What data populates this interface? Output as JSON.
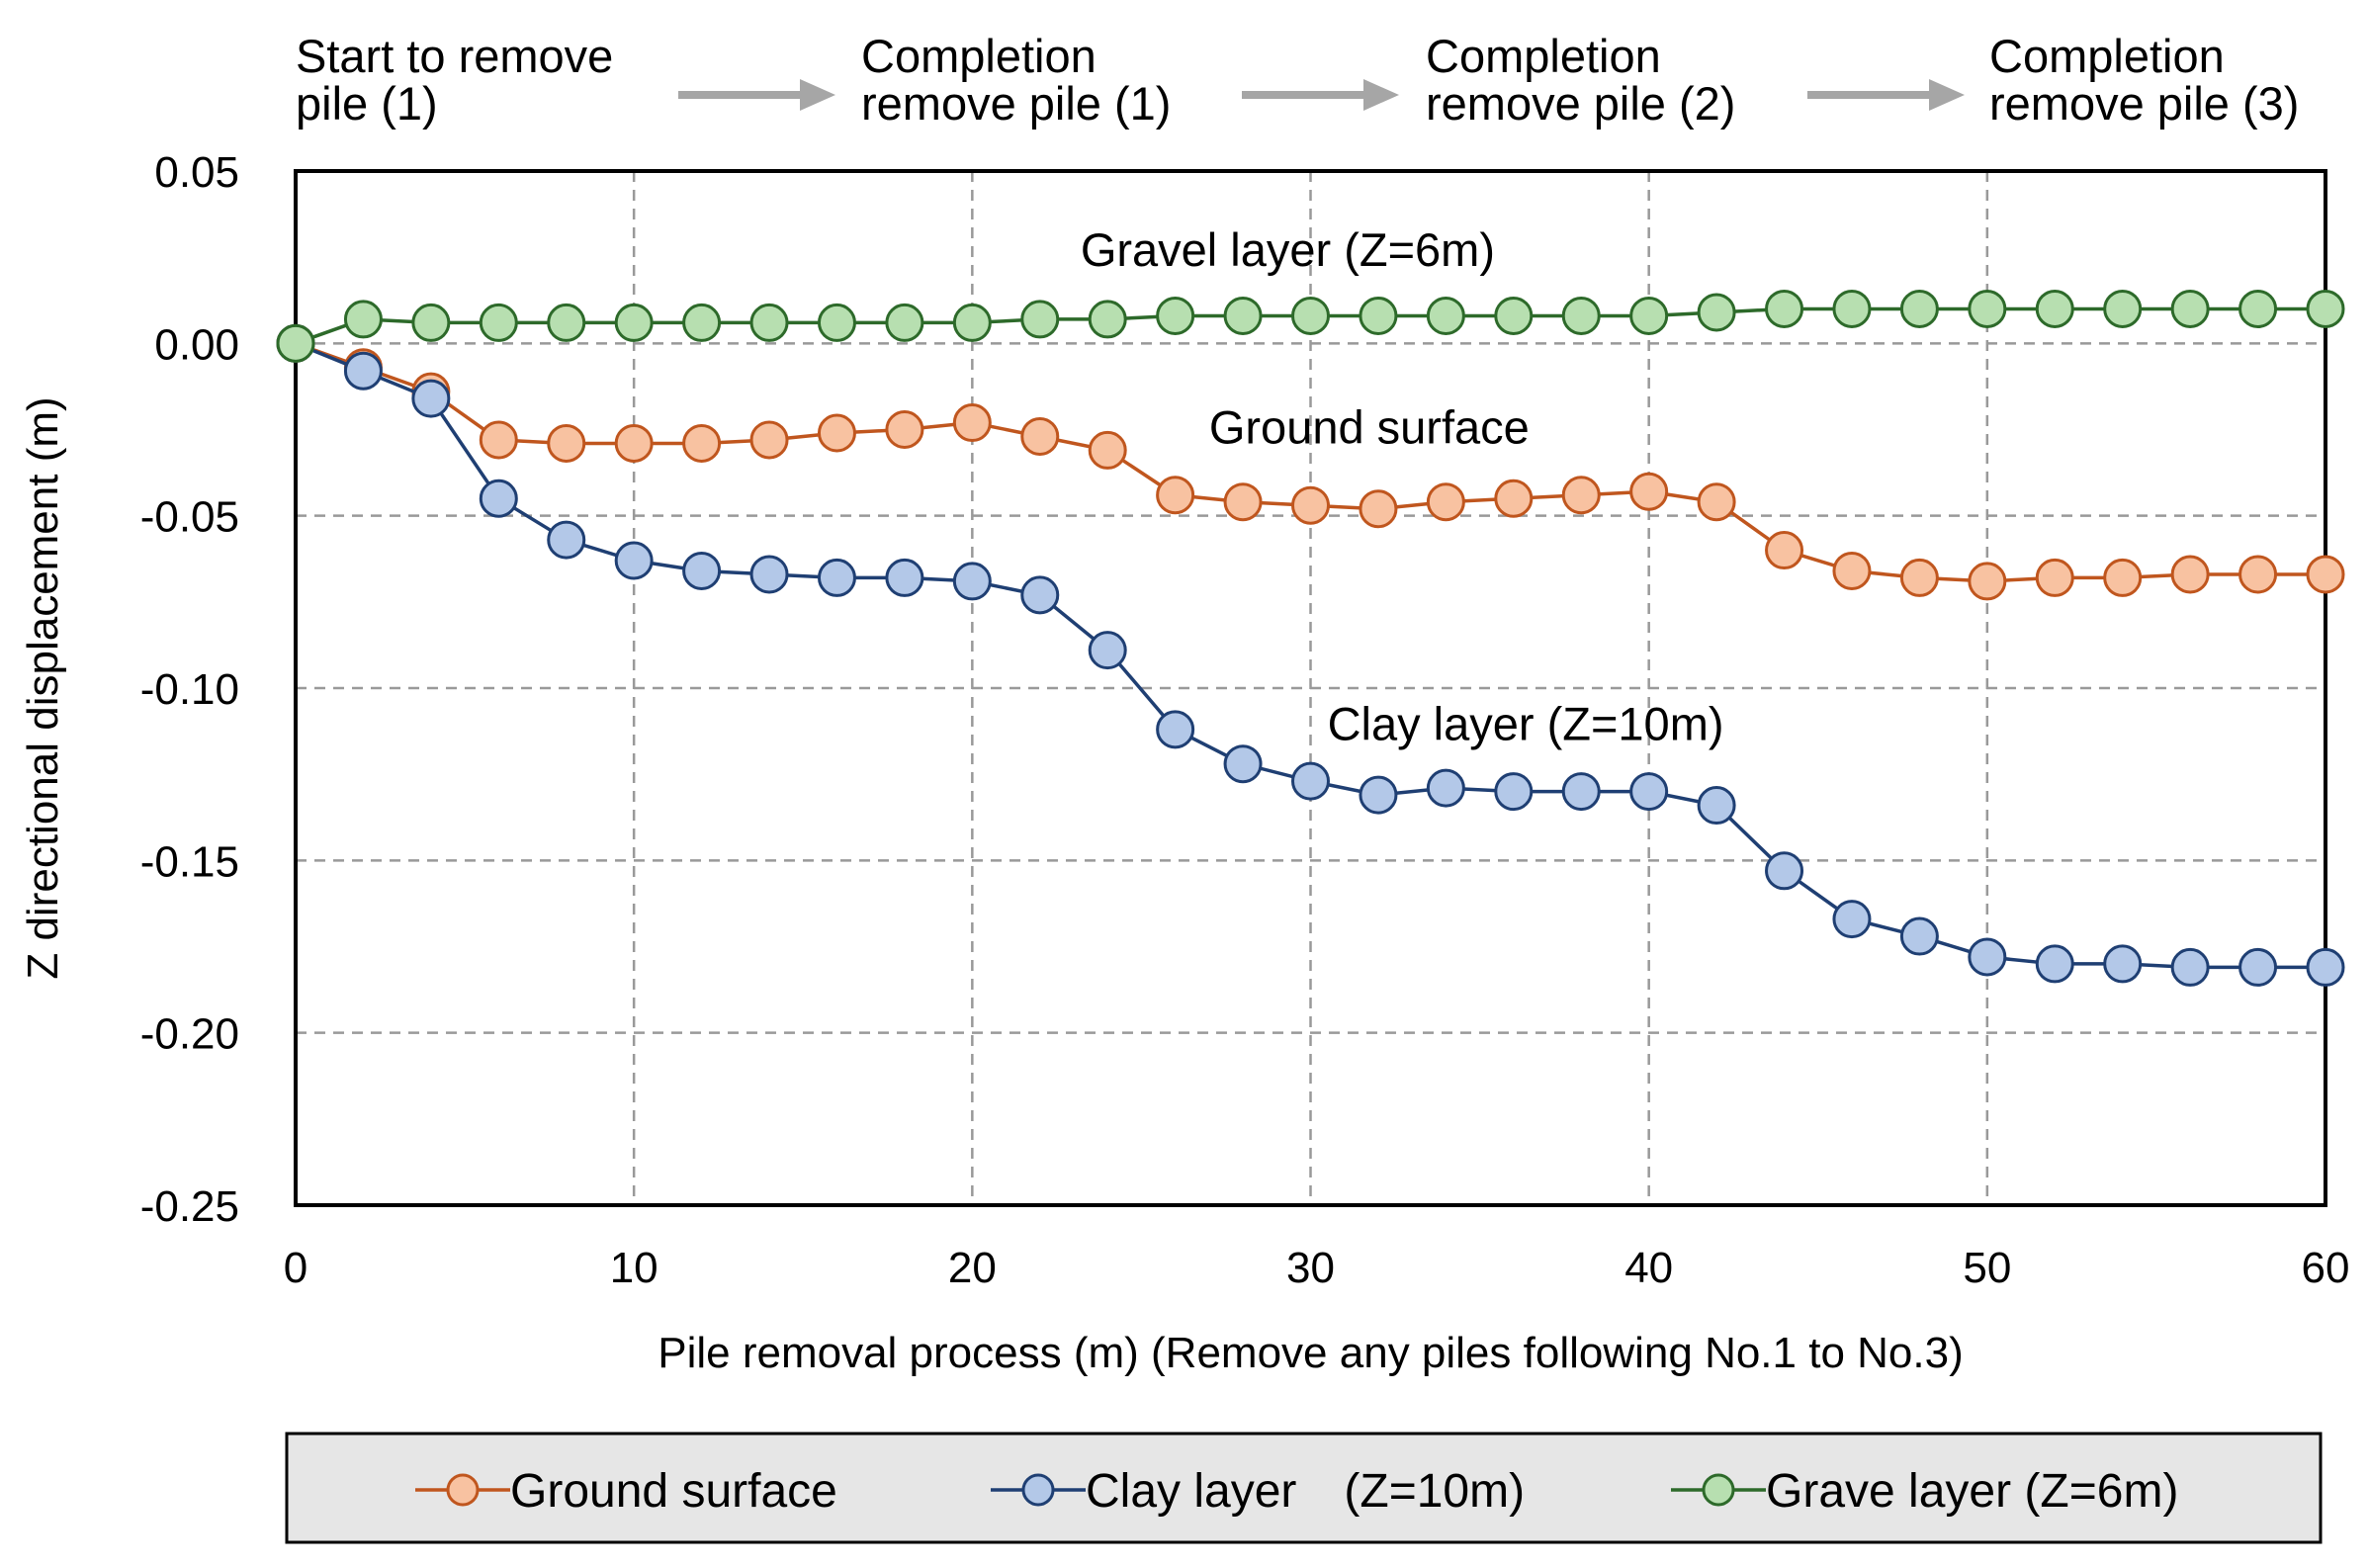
{
  "chart_data": {
    "type": "line",
    "title": "",
    "xlabel": "Pile removal process (m) (Remove any piles following No.1 to No.3)",
    "ylabel": "Z directional displacement (m)",
    "xlim": [
      0,
      60
    ],
    "ylim": [
      -0.25,
      0.05
    ],
    "grid": true,
    "legend_placement": "bottom",
    "x_ticks": [
      0,
      10,
      20,
      30,
      40,
      50,
      60
    ],
    "x_tick_labels": [
      "0",
      "10",
      "20",
      "30",
      "40",
      "50",
      "60"
    ],
    "y_ticks": [
      0.05,
      0.0,
      -0.05,
      -0.1,
      -0.15,
      -0.2,
      -0.25
    ],
    "y_tick_labels": [
      "0.05",
      "0.00",
      "-0.05",
      "-0.10",
      "-0.15",
      "-0.20",
      "-0.25"
    ],
    "x": [
      0,
      2,
      4,
      6,
      8,
      10,
      12,
      14,
      16,
      18,
      20,
      22,
      24,
      26,
      28,
      30,
      32,
      34,
      36,
      38,
      40,
      42,
      44,
      46,
      48,
      50,
      52,
      54,
      56,
      58,
      60
    ],
    "stages": [
      "Start to remove\npile (1)",
      "Completion\nremove pile (1)",
      "Completion\nremove pile (2)",
      "Completion\nremove pile (3)"
    ],
    "series": [
      {
        "key": "ground",
        "name": "Ground surface",
        "legend_label": "Ground surface",
        "annotation": "Ground surface",
        "annotation_at": [
          27,
          -0.029
        ],
        "line_color": "#c0561e",
        "marker_fill": "#f8c2a1",
        "values": [
          0.0,
          -0.007,
          -0.014,
          -0.028,
          -0.029,
          -0.029,
          -0.029,
          -0.028,
          -0.026,
          -0.025,
          -0.023,
          -0.027,
          -0.031,
          -0.044,
          -0.046,
          -0.047,
          -0.048,
          -0.046,
          -0.045,
          -0.044,
          -0.043,
          -0.046,
          -0.06,
          -0.066,
          -0.068,
          -0.069,
          -0.068,
          -0.068,
          -0.067,
          -0.067,
          -0.067
        ]
      },
      {
        "key": "clay",
        "name": "Clay layer (Z=10m)",
        "legend_label": "Clay layer　(Z=10m)",
        "annotation": "Clay layer (Z=10m)",
        "annotation_at": [
          30.5,
          -0.115
        ],
        "line_color": "#1f3f73",
        "marker_fill": "#b3c8e8",
        "values": [
          0.0,
          -0.008,
          -0.016,
          -0.045,
          -0.057,
          -0.063,
          -0.066,
          -0.067,
          -0.068,
          -0.068,
          -0.069,
          -0.073,
          -0.089,
          -0.112,
          -0.122,
          -0.127,
          -0.131,
          -0.129,
          -0.13,
          -0.13,
          -0.13,
          -0.134,
          -0.153,
          -0.167,
          -0.172,
          -0.178,
          -0.18,
          -0.18,
          -0.181,
          -0.181,
          -0.181
        ]
      },
      {
        "key": "gravel",
        "name": "Gravel layer (Z=6m)",
        "legend_label": "Grave layer (Z=6m)",
        "annotation": "Gravel layer (Z=6m)",
        "annotation_at": [
          23.2,
          0.0225
        ],
        "line_color": "#2d6a2a",
        "marker_fill": "#b7dfb0",
        "values": [
          0.0,
          0.007,
          0.006,
          0.006,
          0.006,
          0.006,
          0.006,
          0.006,
          0.006,
          0.006,
          0.006,
          0.007,
          0.007,
          0.008,
          0.008,
          0.008,
          0.008,
          0.008,
          0.008,
          0.008,
          0.008,
          0.009,
          0.01,
          0.01,
          0.01,
          0.01,
          0.01,
          0.01,
          0.01,
          0.01,
          0.01
        ]
      }
    ]
  },
  "colors": {
    "grid": "#999999",
    "arrow": "#a6a6a6",
    "legend_bg": "#e6e6e6",
    "axis": "#000000"
  }
}
